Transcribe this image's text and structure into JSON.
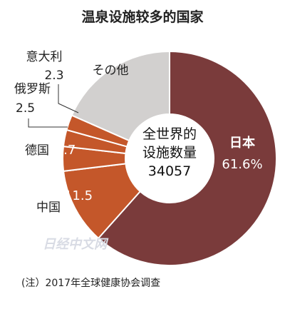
{
  "chart_data": {
    "type": "pie",
    "title": "温泉设施较多的国家",
    "slices": [
      {
        "label": "日本",
        "value": 61.6,
        "value_label": "61.6%",
        "color": "#7a3b3b"
      },
      {
        "label": "中国",
        "value": 11.5,
        "value_label": "11.5",
        "color": "#c4572a"
      },
      {
        "label": "德国",
        "value": 3.7,
        "value_label": "3.7",
        "color": "#c4572a"
      },
      {
        "label": "俄罗斯",
        "value": 2.5,
        "value_label": "2.5",
        "color": "#c4572a"
      },
      {
        "label": "意大利",
        "value": 2.3,
        "value_label": "2.3",
        "color": "#c4572a"
      },
      {
        "label": "その他",
        "value": 18.4,
        "value_label": "",
        "color": "#d2d0cf"
      }
    ],
    "center_lines": [
      "全世界的",
      "设施数量",
      "34057"
    ],
    "note": "(注）2017年全球健康协会调查",
    "watermark": "日经中文网"
  }
}
